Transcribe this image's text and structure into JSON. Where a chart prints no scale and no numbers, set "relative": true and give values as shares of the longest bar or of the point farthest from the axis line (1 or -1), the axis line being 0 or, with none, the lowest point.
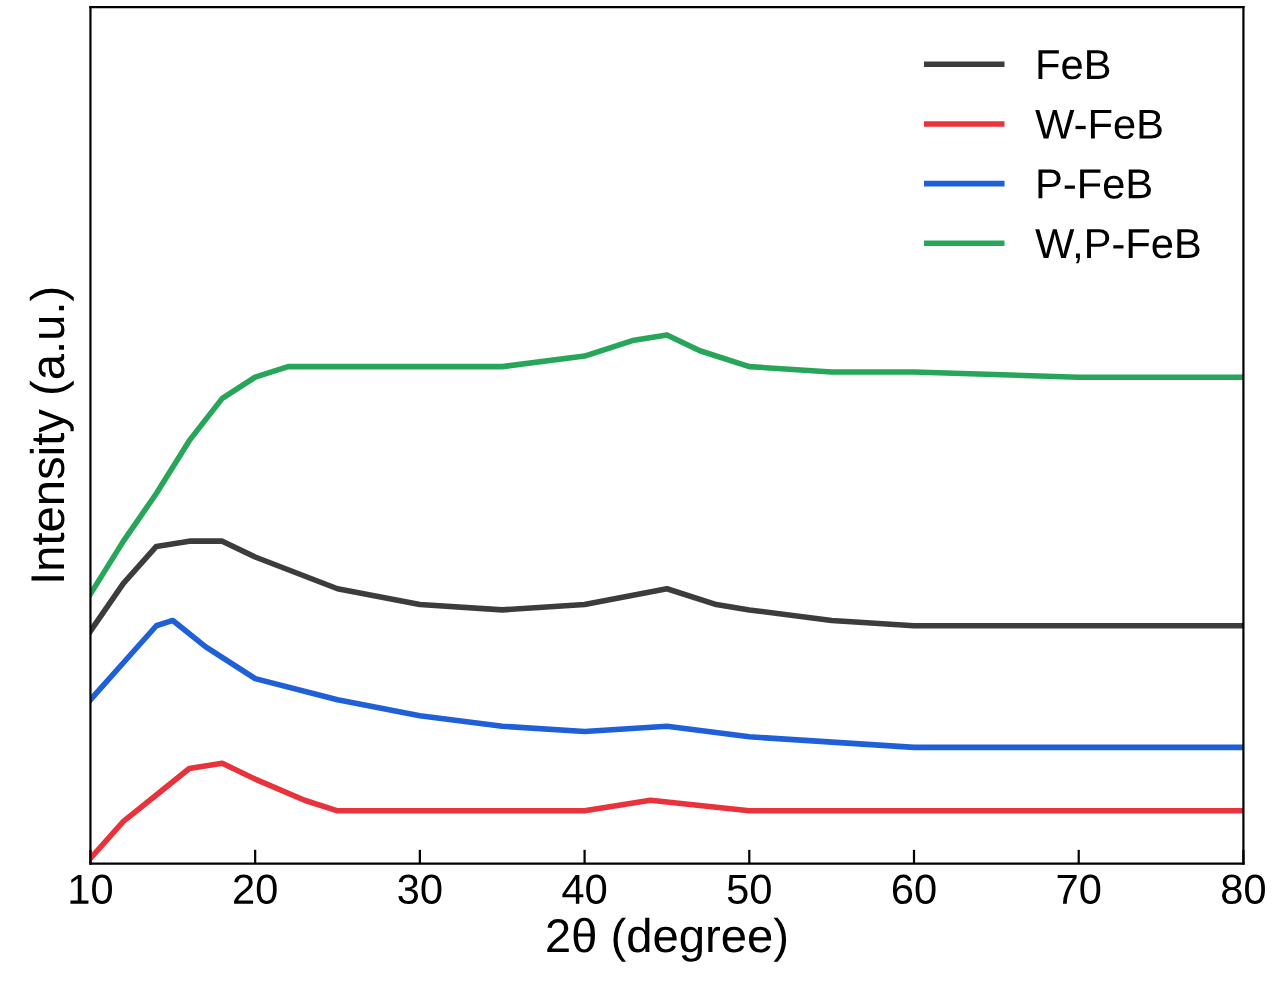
{
  "chart_data": {
    "type": "line",
    "relative": true,
    "xlabel": "2θ (degree)",
    "ylabel": "Intensity (a.u.)",
    "xlim": [
      10,
      80
    ],
    "xticks": [
      10,
      20,
      30,
      40,
      50,
      60,
      70,
      80
    ],
    "legend": "top right",
    "grid": false,
    "tick_labels": "x",
    "series": [
      {
        "name": "FeB",
        "color": "#3c3c3c",
        "x": [
          10,
          12,
          14,
          16,
          18,
          20,
          25,
          30,
          35,
          40,
          45,
          48,
          50,
          55,
          60,
          70,
          80
        ],
        "values": [
          0.44,
          0.53,
          0.6,
          0.61,
          0.61,
          0.58,
          0.52,
          0.49,
          0.48,
          0.49,
          0.52,
          0.49,
          0.48,
          0.46,
          0.45,
          0.45,
          0.45
        ]
      },
      {
        "name": "W-FeB",
        "color": "#e8323c",
        "x": [
          10,
          12,
          14,
          16,
          18,
          20,
          23,
          25,
          30,
          40,
          44,
          50,
          60,
          70,
          80
        ],
        "values": [
          0.01,
          0.08,
          0.13,
          0.18,
          0.19,
          0.16,
          0.12,
          0.1,
          0.1,
          0.1,
          0.12,
          0.1,
          0.1,
          0.1,
          0.1
        ]
      },
      {
        "name": "P-FeB",
        "color": "#1f5fd8",
        "x": [
          10,
          12,
          14,
          15,
          17,
          20,
          25,
          30,
          35,
          40,
          45,
          50,
          60,
          70,
          80
        ],
        "values": [
          0.31,
          0.38,
          0.45,
          0.46,
          0.41,
          0.35,
          0.31,
          0.28,
          0.26,
          0.25,
          0.26,
          0.24,
          0.22,
          0.22,
          0.22
        ]
      },
      {
        "name": "W,P-FeB",
        "color": "#27a65a",
        "x": [
          10,
          12,
          14,
          16,
          18,
          20,
          22,
          25,
          30,
          35,
          40,
          43,
          45,
          47,
          50,
          55,
          60,
          70,
          80
        ],
        "values": [
          0.51,
          0.61,
          0.7,
          0.8,
          0.88,
          0.92,
          0.94,
          0.94,
          0.94,
          0.94,
          0.96,
          0.99,
          1.0,
          0.97,
          0.94,
          0.93,
          0.93,
          0.92,
          0.92
        ]
      }
    ]
  }
}
